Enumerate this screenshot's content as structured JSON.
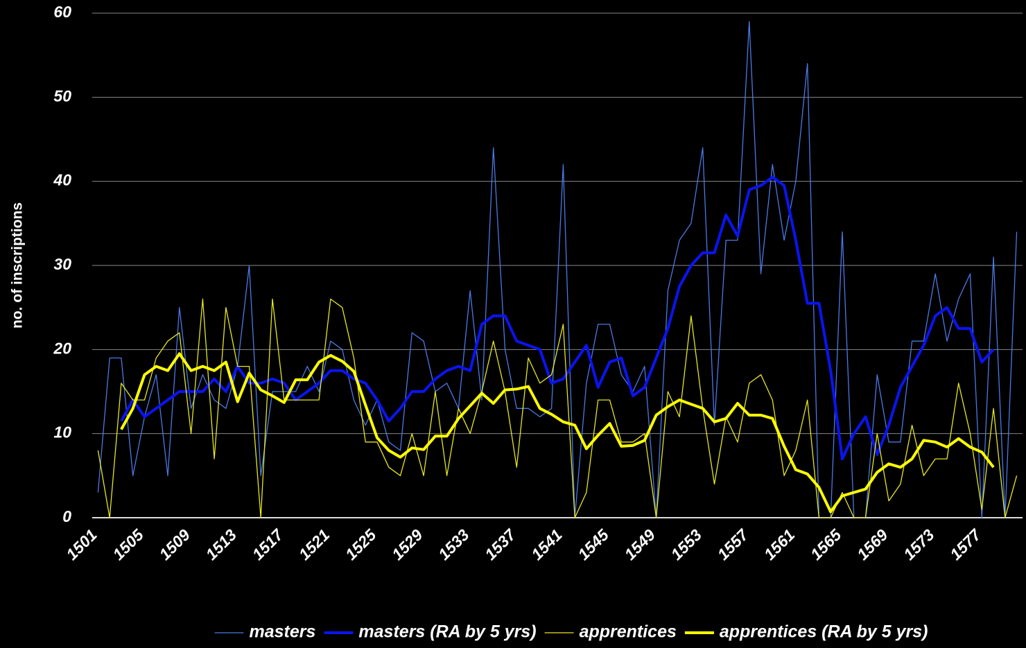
{
  "chart_data": {
    "type": "line",
    "y_label": "no. of inscriptions",
    "categories": [
      "1501",
      null,
      null,
      null,
      "1505",
      null,
      null,
      null,
      "1509",
      null,
      null,
      null,
      "1513",
      null,
      null,
      null,
      "1517",
      null,
      null,
      null,
      "1521",
      null,
      null,
      null,
      "1525",
      null,
      null,
      null,
      "1529",
      null,
      null,
      null,
      "1533",
      null,
      null,
      null,
      "1537",
      null,
      null,
      null,
      "1541",
      null,
      null,
      null,
      "1545",
      null,
      null,
      null,
      "1549",
      null,
      null,
      null,
      "1553",
      null,
      null,
      null,
      "1557",
      null,
      null,
      null,
      "1561",
      null,
      null,
      null,
      "1565",
      null,
      null,
      null,
      "1569",
      null,
      null,
      null,
      "1573",
      null,
      null,
      null,
      "1577",
      null,
      null,
      null
    ],
    "series": [
      {
        "name": "masters",
        "color": "#4a7ae8",
        "width": 1.3,
        "values": [
          3,
          19,
          19,
          5,
          12,
          17,
          5,
          25,
          13,
          17,
          14,
          13,
          18,
          30,
          5,
          15,
          15,
          15,
          18,
          15,
          21,
          20,
          14,
          11,
          14,
          9,
          8,
          22,
          21,
          15,
          16,
          13,
          27,
          14,
          44,
          20,
          13,
          13,
          12,
          13,
          42,
          0,
          16,
          23,
          23,
          17,
          15,
          18,
          0,
          27,
          33,
          35,
          44,
          11,
          33,
          33,
          59,
          29,
          42,
          33,
          40,
          54,
          0,
          0,
          34,
          0,
          0,
          17,
          9,
          9,
          21,
          21,
          29,
          21,
          26,
          29,
          0,
          31,
          0,
          34
        ]
      },
      {
        "name": "masters (RA by 5 yrs)",
        "color": "#0a14f0",
        "width": 4,
        "values": [
          null,
          null,
          11.5,
          14,
          12,
          13,
          14,
          15,
          15,
          15,
          16.5,
          15,
          18,
          16,
          16,
          16.5,
          16,
          14,
          15,
          16,
          17.5,
          17.5,
          16.5,
          16,
          14,
          11.5,
          13,
          15,
          15,
          16.5,
          17.5,
          18,
          17.5,
          23,
          24,
          24,
          21,
          20.5,
          20,
          16,
          16.5,
          18.5,
          20.5,
          15.5,
          18.5,
          19,
          14.5,
          15.5,
          19,
          22.5,
          27.5,
          30,
          31.5,
          31.5,
          36,
          33.5,
          39,
          39.5,
          40.5,
          39.5,
          33,
          25.5,
          25.5,
          17.5,
          7,
          10,
          12,
          7.5,
          11,
          15.5,
          18,
          20.5,
          24,
          25,
          22.5,
          22.5,
          18.5,
          20,
          null,
          null
        ]
      },
      {
        "name": "apprentices",
        "color": "#e8e820",
        "width": 1.3,
        "values": [
          8,
          0,
          16,
          14,
          14,
          19,
          21,
          22,
          10,
          26,
          7,
          25,
          18,
          18,
          0,
          26,
          14,
          14,
          14,
          14,
          26,
          25,
          19,
          9,
          9,
          6,
          5,
          10,
          5,
          15,
          5,
          13,
          10,
          15,
          21,
          15,
          6,
          19,
          16,
          17,
          23,
          0,
          3,
          14,
          14,
          9,
          9,
          10,
          0,
          15,
          12,
          24,
          13,
          4,
          12,
          9,
          16,
          17,
          14,
          5,
          8,
          14,
          0,
          0,
          3,
          0,
          0,
          10,
          2,
          4,
          11,
          5,
          7,
          7,
          16,
          10,
          1,
          13,
          0,
          5
        ]
      },
      {
        "name": "apprentices (RA by 5 yrs)",
        "color": "#ffff00",
        "width": 4,
        "values": [
          null,
          null,
          10.5,
          13,
          17,
          18,
          17.5,
          19.5,
          17.5,
          18,
          17.5,
          18.5,
          13.8,
          17.2,
          15.2,
          14.5,
          13.7,
          16.4,
          16.4,
          18.5,
          19.3,
          18.6,
          17.4,
          13.4,
          9.5,
          8,
          7.2,
          8.3,
          8.1,
          9.7,
          9.7,
          11.8,
          13.3,
          14.8,
          13.6,
          15.2,
          15.3,
          15.6,
          13,
          12.3,
          11.4,
          11,
          8.2,
          9.8,
          11.2,
          8.5,
          8.6,
          9.2,
          12.2,
          13.2,
          14,
          13.5,
          13,
          11.4,
          11.8,
          13.6,
          12.2,
          12.2,
          11.8,
          8.5,
          5.7,
          5.2,
          3.6,
          0.7,
          2.6,
          3,
          3.4,
          5.4,
          6.4,
          6,
          7,
          9.2,
          9,
          8.4,
          9.4,
          8.4,
          7.8,
          6,
          null,
          null
        ]
      }
    ],
    "ylim": [
      0,
      60
    ],
    "yticks": [
      0,
      10,
      20,
      30,
      40,
      50,
      60
    ],
    "grid": true,
    "legend": "bottom"
  }
}
